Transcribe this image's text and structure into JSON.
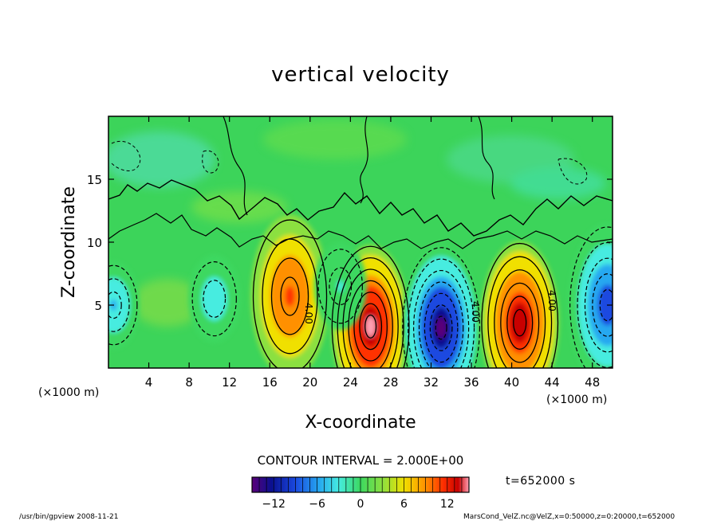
{
  "chart_data": {
    "type": "heatmap",
    "title": "vertical velocity",
    "xlabel": "X-coordinate",
    "ylabel": "Z-coordinate",
    "x_unit_left": "(×1000 m)",
    "x_unit_right": "(×1000 m)",
    "xlim": [
      0,
      50
    ],
    "ylim": [
      0,
      20
    ],
    "x_ticks": [
      4,
      8,
      12,
      16,
      20,
      24,
      28,
      32,
      36,
      40,
      44,
      48
    ],
    "y_ticks": [
      5,
      10,
      15
    ],
    "contour_interval_label": "CONTOUR INTERVAL = 2.000E+00",
    "contour_labels": [
      "4.00",
      "4.00",
      "4.00"
    ],
    "colorbar": {
      "range": [
        -15,
        15
      ],
      "ticks": [
        -12,
        -6,
        0,
        6,
        12
      ],
      "colormap": [
        "#5a0078",
        "#0a1090",
        "#1a4ae0",
        "#26a8f0",
        "#46ece0",
        "#3cd860",
        "#8be040",
        "#f0e000",
        "#ff9000",
        "#ff3000",
        "#c80000",
        "#ffa0b4"
      ]
    },
    "time_label": "t=652000 s",
    "cells": [
      {
        "x": 18,
        "z": 5.7,
        "w": 9
      },
      {
        "x": 26,
        "z": 3.3,
        "w": 14
      },
      {
        "x": 33,
        "z": 3.2,
        "w": -14
      },
      {
        "x": 40.8,
        "z": 3.6,
        "w": 13
      },
      {
        "x": 49.5,
        "z": 5,
        "w": -10
      },
      {
        "x": 10.5,
        "z": 5.5,
        "w": -5
      },
      {
        "x": 0.5,
        "z": 5,
        "w": -6
      },
      {
        "x": 23,
        "z": 6.5,
        "w": -3
      }
    ]
  },
  "footer": {
    "program": "/usr/bin/gpview   2008-11-21",
    "source": "MarsCond_VelZ.nc@VelZ,x=0:50000,z=0:20000,t=652000"
  }
}
